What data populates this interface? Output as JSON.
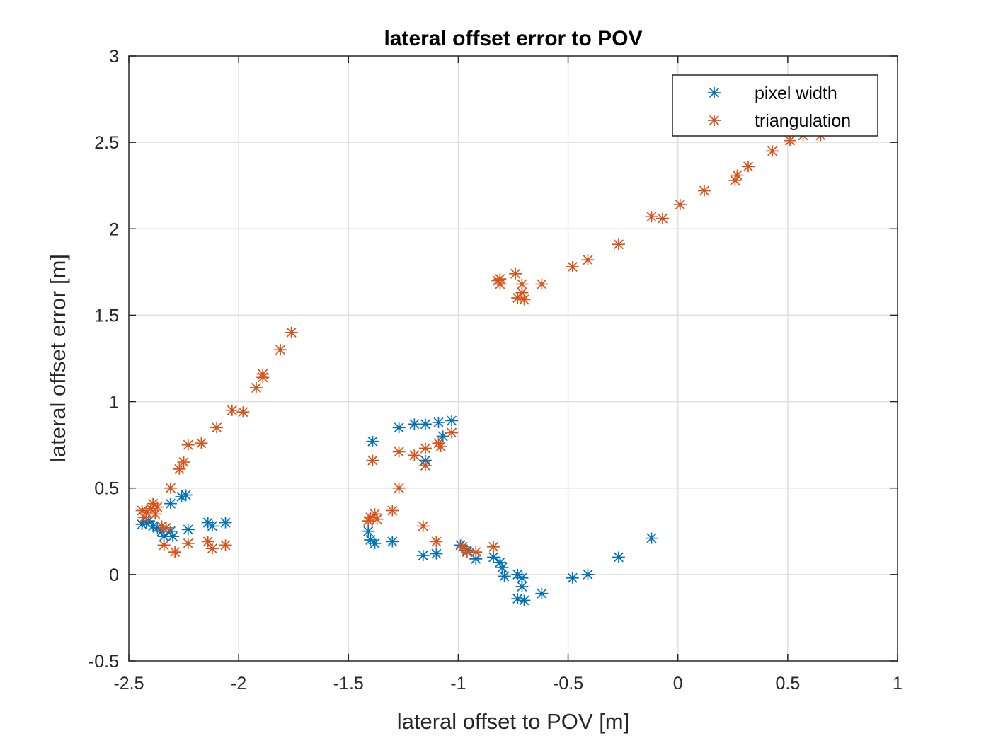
{
  "chart_data": {
    "type": "scatter",
    "title": "lateral offset error to POV",
    "xlabel": "lateral offset to POV [m]",
    "ylabel": "lateral offset error [m]",
    "xlim": [
      -2.5,
      1
    ],
    "ylim": [
      -0.5,
      3
    ],
    "xticks": [
      "-2.5",
      "-2",
      "-1.5",
      "-1",
      "-0.5",
      "0",
      "0.5",
      "1"
    ],
    "yticks": [
      "-0.5",
      "0",
      "0.5",
      "1",
      "1.5",
      "2",
      "2.5",
      "3"
    ],
    "grid": true,
    "legend": "top-right",
    "marker": "asterisk",
    "series": [
      {
        "name": "pixel width",
        "color": "#0072BD",
        "points": [
          [
            -2.44,
            0.29
          ],
          [
            -2.42,
            0.3
          ],
          [
            -2.41,
            0.31
          ],
          [
            -2.39,
            0.28
          ],
          [
            -2.37,
            0.27
          ],
          [
            -2.35,
            0.25
          ],
          [
            -2.34,
            0.22
          ],
          [
            -2.31,
            0.25
          ],
          [
            -2.3,
            0.22
          ],
          [
            -2.31,
            0.41
          ],
          [
            -2.26,
            0.45
          ],
          [
            -2.24,
            0.46
          ],
          [
            -2.23,
            0.26
          ],
          [
            -2.14,
            0.3
          ],
          [
            -2.12,
            0.28
          ],
          [
            -2.06,
            0.3
          ],
          [
            -1.41,
            0.25
          ],
          [
            -1.4,
            0.2
          ],
          [
            -1.39,
            0.77
          ],
          [
            -1.38,
            0.18
          ],
          [
            -1.3,
            0.19
          ],
          [
            -1.27,
            0.85
          ],
          [
            -1.2,
            0.87
          ],
          [
            -1.16,
            0.11
          ],
          [
            -1.15,
            0.87
          ],
          [
            -1.15,
            0.66
          ],
          [
            -1.1,
            0.12
          ],
          [
            -1.09,
            0.88
          ],
          [
            -1.07,
            0.8
          ],
          [
            -1.03,
            0.89
          ],
          [
            -0.99,
            0.17
          ],
          [
            -0.96,
            0.14
          ],
          [
            -0.92,
            0.09
          ],
          [
            -0.84,
            0.1
          ],
          [
            -0.81,
            0.07
          ],
          [
            -0.8,
            0.04
          ],
          [
            -0.79,
            -0.01
          ],
          [
            -0.73,
            -0.14
          ],
          [
            -0.73,
            0.0
          ],
          [
            -0.71,
            -0.02
          ],
          [
            -0.71,
            -0.07
          ],
          [
            -0.7,
            -0.15
          ],
          [
            -0.62,
            -0.11
          ],
          [
            -0.48,
            -0.02
          ],
          [
            -0.41,
            0.0
          ],
          [
            -0.27,
            0.1
          ],
          [
            -0.12,
            0.21
          ]
        ]
      },
      {
        "name": "triangulation",
        "color": "#D95319",
        "points": [
          [
            -2.44,
            0.37
          ],
          [
            -2.43,
            0.33
          ],
          [
            -2.42,
            0.36
          ],
          [
            -2.4,
            0.38
          ],
          [
            -2.39,
            0.41
          ],
          [
            -2.38,
            0.35
          ],
          [
            -2.37,
            0.39
          ],
          [
            -2.35,
            0.28
          ],
          [
            -2.34,
            0.17
          ],
          [
            -2.33,
            0.27
          ],
          [
            -2.31,
            0.5
          ],
          [
            -2.29,
            0.13
          ],
          [
            -2.27,
            0.61
          ],
          [
            -2.25,
            0.65
          ],
          [
            -2.23,
            0.75
          ],
          [
            -2.23,
            0.18
          ],
          [
            -2.17,
            0.76
          ],
          [
            -2.14,
            0.19
          ],
          [
            -2.12,
            0.15
          ],
          [
            -2.1,
            0.85
          ],
          [
            -2.06,
            0.17
          ],
          [
            -2.03,
            0.95
          ],
          [
            -1.98,
            0.94
          ],
          [
            -1.92,
            1.08
          ],
          [
            -1.89,
            1.14
          ],
          [
            -1.89,
            1.16
          ],
          [
            -1.81,
            1.3
          ],
          [
            -1.76,
            1.4
          ],
          [
            -1.41,
            0.31
          ],
          [
            -1.4,
            0.33
          ],
          [
            -1.39,
            0.66
          ],
          [
            -1.38,
            0.35
          ],
          [
            -1.37,
            0.32
          ],
          [
            -1.3,
            0.37
          ],
          [
            -1.27,
            0.5
          ],
          [
            -1.27,
            0.71
          ],
          [
            -1.2,
            0.69
          ],
          [
            -1.16,
            0.28
          ],
          [
            -1.15,
            0.73
          ],
          [
            -1.15,
            0.63
          ],
          [
            -1.1,
            0.19
          ],
          [
            -1.09,
            0.76
          ],
          [
            -1.08,
            0.74
          ],
          [
            -1.03,
            0.82
          ],
          [
            -0.98,
            0.16
          ],
          [
            -0.96,
            0.13
          ],
          [
            -0.92,
            0.13
          ],
          [
            -0.84,
            0.16
          ],
          [
            -0.82,
            1.7
          ],
          [
            -0.81,
            1.68
          ],
          [
            -0.81,
            1.71
          ],
          [
            -0.74,
            1.74
          ],
          [
            -0.73,
            1.6
          ],
          [
            -0.71,
            1.68
          ],
          [
            -0.71,
            1.63
          ],
          [
            -0.7,
            1.59
          ],
          [
            -0.62,
            1.68
          ],
          [
            -0.48,
            1.78
          ],
          [
            -0.41,
            1.82
          ],
          [
            -0.27,
            1.91
          ],
          [
            -0.12,
            2.07
          ],
          [
            -0.07,
            2.06
          ],
          [
            0.01,
            2.14
          ],
          [
            0.12,
            2.22
          ],
          [
            0.26,
            2.28
          ],
          [
            0.27,
            2.31
          ],
          [
            0.32,
            2.36
          ],
          [
            0.43,
            2.45
          ],
          [
            0.51,
            2.51
          ],
          [
            0.57,
            2.54
          ],
          [
            0.65,
            2.54
          ]
        ]
      }
    ]
  }
}
